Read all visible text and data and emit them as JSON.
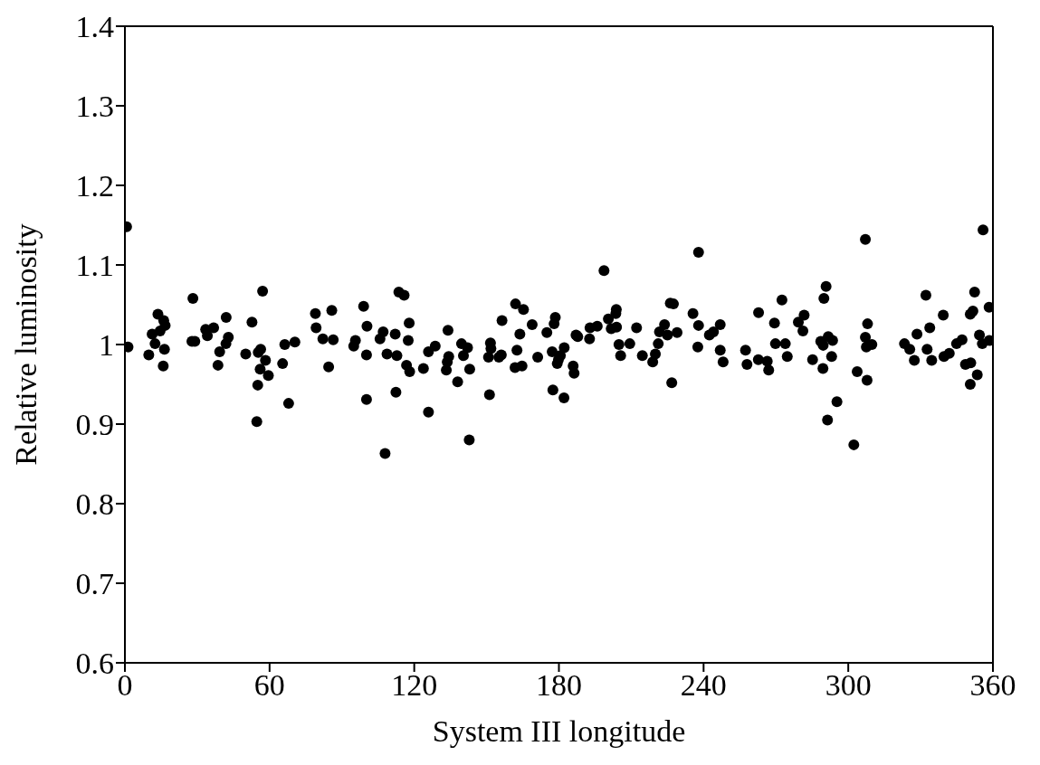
{
  "chart_data": {
    "type": "scatter",
    "xlabel": "System III longitude",
    "ylabel": "Relative luminosity",
    "xlim": [
      0,
      360
    ],
    "xticks": [
      0,
      60,
      120,
      180,
      240,
      300,
      360
    ],
    "ylim": [
      0.6,
      1.4
    ],
    "yticks": [
      0.6,
      0.7,
      0.8,
      0.9,
      1,
      1.1,
      1.2,
      1.3,
      1.4
    ],
    "marker": "circle",
    "color": "#000000",
    "x": [
      0.7,
      1.3,
      9.9,
      11.3,
      12.5,
      13.7,
      14.6,
      16.1,
      16.7,
      16.4,
      15.9,
      28.2,
      27.8,
      29.0,
      33.5,
      34.2,
      36.8,
      42.0,
      42.9,
      41.9,
      39.3,
      38.6,
      50.1,
      52.7,
      57.1,
      55.3,
      56.3,
      58.3,
      56.1,
      59.5,
      55.1,
      54.7,
      65.4,
      66.3,
      70.5,
      67.9,
      79.0,
      79.3,
      82.1,
      85.8,
      86.4,
      84.5,
      99.0,
      100.4,
      94.9,
      95.6,
      100.2,
      100.2,
      107.9,
      105.8,
      107.1,
      108.7,
      112.1,
      112.8,
      112.4,
      113.6,
      115.8,
      117.9,
      117.5,
      116.8,
      118.1,
      123.8,
      125.9,
      128.7,
      125.9,
      134.0,
      134.3,
      133.7,
      133.3,
      138.0,
      139.6,
      142.1,
      140.4,
      143.0,
      142.8,
      151.6,
      151.8,
      150.8,
      151.2,
      155.1,
      156.1,
      156.4,
      162.0,
      165.3,
      163.8,
      162.6,
      161.8,
      164.7,
      168.9,
      171.2,
      175.0,
      177.2,
      178.5,
      178.0,
      182.2,
      180.6,
      179.8,
      179.3,
      177.5,
      182.1,
      185.9,
      186.3,
      187.1,
      187.8,
      192.7,
      192.9,
      195.9,
      198.7,
      200.5,
      203.8,
      203.6,
      201.7,
      203.9,
      204.9,
      205.6,
      209.4,
      212.2,
      214.6,
      218.9,
      220.0,
      221.2,
      221.7,
      223.8,
      225.0,
      229.0,
      226.2,
      227.5,
      226.8,
      235.6,
      237.9,
      237.9,
      237.6,
      242.4,
      244.1,
      246.9,
      246.9,
      248.1,
      257.4,
      258.0,
      262.8,
      262.7,
      266.4,
      267.0,
      269.4,
      269.8,
      272.5,
      273.9,
      274.7,
      279.3,
      281.7,
      281.2,
      285.2,
      288.6,
      289.6,
      291.7,
      293.5,
      289.5,
      293.1,
      289.9,
      290.8,
      291.4,
      295.3,
      302.3,
      303.7,
      307.8,
      307.1,
      308.0,
      307.1,
      307.5,
      309.8,
      323.3,
      325.5,
      327.4,
      328.5,
      333.8,
      332.2,
      332.7,
      334.6,
      339.4,
      339.7,
      341.9,
      344.9,
      347.2,
      348.6,
      350.8,
      350.6,
      351.7,
      352.4,
      350.6,
      353.5,
      354.4,
      355.6,
      355.9,
      358.5,
      358.4
    ],
    "values": [
      1.148,
      0.997,
      0.987,
      1.013,
      1.001,
      1.038,
      1.017,
      1.03,
      1.024,
      0.994,
      0.973,
      1.058,
      1.004,
      1.004,
      1.019,
      1.011,
      1.021,
      1.034,
      1.009,
      1.001,
      0.991,
      0.974,
      0.988,
      1.028,
      1.067,
      0.99,
      0.994,
      0.98,
      0.969,
      0.961,
      0.949,
      0.903,
      0.976,
      1.0,
      1.003,
      0.926,
      1.039,
      1.021,
      1.007,
      1.043,
      1.006,
      0.972,
      1.048,
      1.023,
      0.998,
      1.005,
      0.987,
      0.931,
      0.863,
      1.007,
      1.016,
      0.988,
      1.013,
      0.986,
      0.94,
      1.066,
      1.062,
      1.027,
      1.005,
      0.974,
      0.966,
      0.97,
      0.991,
      0.998,
      0.915,
      1.018,
      0.985,
      0.978,
      0.968,
      0.953,
      1.001,
      0.996,
      0.986,
      0.969,
      0.88,
      1.002,
      0.995,
      0.984,
      0.937,
      0.984,
      0.987,
      1.03,
      1.051,
      1.044,
      1.013,
      0.993,
      0.971,
      0.973,
      1.025,
      0.984,
      1.015,
      0.991,
      1.034,
      1.026,
      0.996,
      0.986,
      0.981,
      0.976,
      0.943,
      0.933,
      0.973,
      0.964,
      1.012,
      1.01,
      1.007,
      1.021,
      1.023,
      1.093,
      1.032,
      1.044,
      1.039,
      1.02,
      1.022,
      1.0,
      0.986,
      1.001,
      1.021,
      0.986,
      0.978,
      0.988,
      1.001,
      1.016,
      1.025,
      1.012,
      1.015,
      1.052,
      1.051,
      0.952,
      1.039,
      1.116,
      1.024,
      0.997,
      1.012,
      1.016,
      1.025,
      0.993,
      0.978,
      0.993,
      0.975,
      1.04,
      0.981,
      0.979,
      0.968,
      1.027,
      1.001,
      1.056,
      1.001,
      0.985,
      1.028,
      1.037,
      1.017,
      0.981,
      1.004,
      0.999,
      1.01,
      1.005,
      0.97,
      0.985,
      1.058,
      1.073,
      0.905,
      0.928,
      0.874,
      0.966,
      0.955,
      1.132,
      1.026,
      1.009,
      0.997,
      1.0,
      1.001,
      0.994,
      0.98,
      1.013,
      1.021,
      1.062,
      0.994,
      0.98,
      1.037,
      0.985,
      0.989,
      1.001,
      1.006,
      0.975,
      0.977,
      1.038,
      1.042,
      1.066,
      0.95,
      0.962,
      1.012,
      1.001,
      1.144,
      1.005,
      1.047
    ]
  }
}
